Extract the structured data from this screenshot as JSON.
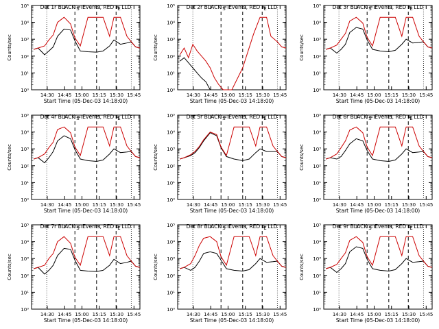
{
  "page": {
    "xlabel": "Start Time (05-Dec-03 14:18:00)",
    "ylabel": "Counts/sec",
    "x_tick_labels": [
      "14:30",
      "14:45",
      "15:00",
      "15:15",
      "15:30",
      "15:45"
    ],
    "y_tick_labels": [
      "10⁰",
      "10¹",
      "10²",
      "10³",
      "10⁴",
      "10⁵"
    ],
    "marker_labels": [
      "S",
      "E"
    ],
    "colors": {
      "events": "#000000",
      "lld": "#cc0000"
    }
  },
  "chart_data": [
    {
      "type": "line",
      "title": "Det 1r BLACK = Events, RED = LLD",
      "variant": "normal",
      "x": [
        2,
        6,
        12,
        16,
        20,
        24,
        30,
        36,
        40,
        45,
        52,
        60,
        66,
        72,
        76,
        82,
        88,
        92,
        96,
        100
      ],
      "series": [
        {
          "values": [
            250,
            300,
            120,
            200,
            350,
            1500,
            4000,
            3500,
            800,
            200,
            180,
            170,
            200,
            400,
            900,
            500,
            600,
            700,
            350,
            300
          ]
        },
        {
          "values": [
            250,
            300,
            400,
            900,
            1800,
            10000,
            20000,
            8000,
            1200,
            400,
            20000,
            20000,
            20000,
            1500,
            20000,
            20000,
            1500,
            700,
            350,
            300
          ]
        }
      ],
      "ylim": [
        1,
        100000
      ],
      "yscale": "log",
      "xlim": [
        0,
        100
      ],
      "x_tick_values": [
        14.5,
        30.5,
        46.5,
        62.5,
        78.5,
        94.5
      ],
      "dotted_x": [
        14,
        92
      ],
      "dashed_x": [
        40,
        60,
        78
      ]
    },
    {
      "type": "line",
      "title": "Det 2r BLACK = Events, RED = LLD",
      "variant": "noisy",
      "x": [
        2,
        6,
        10,
        14,
        18,
        22,
        26,
        30,
        34,
        38,
        42,
        50,
        60,
        70,
        76,
        82,
        86,
        92,
        96,
        100
      ],
      "series": [
        {
          "values": [
            50,
            80,
            40,
            20,
            10,
            5,
            3,
            1,
            1,
            1,
            1,
            1,
            1,
            1,
            1,
            1,
            1,
            1,
            1,
            1
          ]
        },
        {
          "values": [
            120,
            300,
            80,
            500,
            200,
            100,
            50,
            20,
            5,
            2,
            1,
            1,
            20,
            2000,
            20000,
            20000,
            1500,
            700,
            350,
            300
          ]
        }
      ],
      "ylim": [
        1,
        100000
      ],
      "yscale": "log",
      "xlim": [
        0,
        100
      ],
      "x_tick_values": [
        14.5,
        30.5,
        46.5,
        62.5,
        78.5,
        94.5
      ],
      "dotted_x": [
        14,
        92
      ],
      "dashed_x": [
        40,
        60,
        78
      ]
    },
    {
      "type": "line",
      "title": "Det 3r BLACK = Events, RED = LLD",
      "variant": "normal",
      "x": [
        2,
        6,
        12,
        16,
        20,
        24,
        30,
        36,
        40,
        45,
        52,
        60,
        66,
        72,
        76,
        82,
        88,
        92,
        96,
        100
      ],
      "series": [
        {
          "values": [
            250,
            300,
            150,
            250,
            500,
            2500,
            5000,
            4000,
            900,
            250,
            200,
            180,
            220,
            500,
            1000,
            600,
            650,
            700,
            350,
            300
          ]
        },
        {
          "values": [
            250,
            300,
            450,
            1000,
            2200,
            12000,
            20000,
            9000,
            1300,
            400,
            20000,
            20000,
            20000,
            1500,
            20000,
            20000,
            1500,
            700,
            350,
            300
          ]
        }
      ],
      "ylim": [
        1,
        100000
      ],
      "yscale": "log",
      "xlim": [
        0,
        100
      ],
      "x_tick_values": [
        14.5,
        30.5,
        46.5,
        62.5,
        78.5,
        94.5
      ],
      "dotted_x": [
        14,
        92
      ],
      "dashed_x": [
        40,
        60,
        78
      ]
    },
    {
      "type": "line",
      "title": "Det 4r BLACK = Events, RED = LLD",
      "variant": "normal",
      "x": [
        2,
        6,
        12,
        16,
        20,
        24,
        30,
        36,
        40,
        45,
        52,
        60,
        66,
        72,
        76,
        82,
        88,
        92,
        96,
        100
      ],
      "series": [
        {
          "values": [
            250,
            300,
            150,
            300,
            700,
            3000,
            6000,
            4000,
            900,
            250,
            200,
            180,
            220,
            500,
            1000,
            600,
            650,
            700,
            350,
            300
          ]
        },
        {
          "values": [
            250,
            300,
            500,
            1200,
            2500,
            14000,
            20000,
            9000,
            1300,
            400,
            20000,
            20000,
            20000,
            1500,
            20000,
            20000,
            1500,
            700,
            350,
            300
          ]
        }
      ],
      "ylim": [
        1,
        100000
      ],
      "yscale": "log",
      "xlim": [
        0,
        100
      ],
      "x_tick_values": [
        14.5,
        30.5,
        46.5,
        62.5,
        78.5,
        94.5
      ],
      "dotted_x": [
        14,
        92
      ],
      "dashed_x": [
        40,
        60,
        78
      ]
    },
    {
      "type": "line",
      "title": "Det 5r BLACK = Events, RED = LLD",
      "variant": "normal",
      "x": [
        2,
        6,
        12,
        16,
        20,
        24,
        30,
        36,
        40,
        45,
        52,
        60,
        66,
        72,
        76,
        82,
        88,
        92,
        96,
        100
      ],
      "series": [
        {
          "values": [
            250,
            300,
            400,
            600,
            1200,
            3000,
            9000,
            6000,
            1200,
            350,
            250,
            200,
            250,
            600,
            1000,
            700,
            700,
            700,
            350,
            300
          ]
        },
        {
          "values": [
            250,
            300,
            450,
            700,
            1400,
            3500,
            10000,
            7000,
            1300,
            400,
            20000,
            20000,
            20000,
            1500,
            20000,
            20000,
            1500,
            700,
            350,
            300
          ]
        }
      ],
      "ylim": [
        1,
        100000
      ],
      "yscale": "log",
      "xlim": [
        0,
        100
      ],
      "x_tick_values": [
        14.5,
        30.5,
        46.5,
        62.5,
        78.5,
        94.5
      ],
      "dotted_x": [
        14,
        92
      ],
      "dashed_x": [
        40,
        60,
        78
      ]
    },
    {
      "type": "line",
      "title": "Det 6r BLACK = Events, RED = LLD",
      "variant": "normal",
      "x": [
        2,
        6,
        12,
        16,
        20,
        24,
        30,
        36,
        40,
        45,
        52,
        60,
        66,
        72,
        76,
        82,
        88,
        92,
        96,
        100
      ],
      "series": [
        {
          "values": [
            250,
            300,
            250,
            350,
            800,
            2000,
            4000,
            3000,
            800,
            250,
            200,
            180,
            220,
            500,
            1000,
            600,
            650,
            700,
            350,
            300
          ]
        },
        {
          "values": [
            250,
            300,
            500,
            1200,
            3000,
            13000,
            20000,
            9000,
            1300,
            400,
            20000,
            20000,
            20000,
            1500,
            20000,
            20000,
            1500,
            700,
            350,
            300
          ]
        }
      ],
      "ylim": [
        1,
        100000
      ],
      "yscale": "log",
      "xlim": [
        0,
        100
      ],
      "x_tick_values": [
        14.5,
        30.5,
        46.5,
        62.5,
        78.5,
        94.5
      ],
      "dotted_x": [
        14,
        92
      ],
      "dashed_x": [
        40,
        60,
        78
      ]
    },
    {
      "type": "line",
      "title": "Det 7r BLACK = Events, RED = LLD",
      "variant": "normal",
      "x": [
        2,
        6,
        12,
        16,
        20,
        24,
        30,
        36,
        40,
        45,
        52,
        60,
        66,
        72,
        76,
        82,
        88,
        92,
        96,
        100
      ],
      "series": [
        {
          "values": [
            250,
            300,
            120,
            200,
            400,
            1500,
            4000,
            3500,
            800,
            200,
            180,
            170,
            200,
            400,
            900,
            500,
            600,
            700,
            350,
            300
          ]
        },
        {
          "values": [
            250,
            300,
            400,
            1000,
            2000,
            10000,
            20000,
            8000,
            1200,
            400,
            20000,
            20000,
            20000,
            1500,
            20000,
            20000,
            1500,
            700,
            350,
            300
          ]
        }
      ],
      "ylim": [
        1,
        100000
      ],
      "yscale": "log",
      "xlim": [
        0,
        100
      ],
      "x_tick_values": [
        14.5,
        30.5,
        46.5,
        62.5,
        78.5,
        94.5
      ],
      "dotted_x": [
        14,
        92
      ],
      "dashed_x": [
        40,
        60,
        78
      ]
    },
    {
      "type": "line",
      "title": "Det 8r BLACK = Events, RED = LLD",
      "variant": "normal",
      "x": [
        2,
        6,
        12,
        16,
        20,
        24,
        30,
        36,
        40,
        45,
        52,
        60,
        66,
        72,
        76,
        82,
        88,
        92,
        96,
        100
      ],
      "series": [
        {
          "values": [
            250,
            300,
            200,
            300,
            700,
            2000,
            2500,
            2000,
            800,
            250,
            200,
            180,
            220,
            500,
            1000,
            600,
            650,
            700,
            350,
            300
          ]
        },
        {
          "values": [
            250,
            300,
            500,
            1500,
            6000,
            16000,
            20000,
            10000,
            1300,
            400,
            20000,
            20000,
            20000,
            1500,
            20000,
            20000,
            1500,
            700,
            350,
            300
          ]
        }
      ],
      "ylim": [
        1,
        100000
      ],
      "yscale": "log",
      "xlim": [
        0,
        100
      ],
      "x_tick_values": [
        14.5,
        30.5,
        46.5,
        62.5,
        78.5,
        94.5
      ],
      "dotted_x": [
        14,
        92
      ],
      "dashed_x": [
        40,
        60,
        78
      ]
    },
    {
      "type": "line",
      "title": "Det 9r BLACK = Events, RED = LLD",
      "variant": "normal",
      "x": [
        2,
        6,
        12,
        16,
        20,
        24,
        30,
        36,
        40,
        45,
        52,
        60,
        66,
        72,
        76,
        82,
        88,
        92,
        96,
        100
      ],
      "series": [
        {
          "values": [
            250,
            300,
            150,
            250,
            500,
            2500,
            5000,
            4000,
            900,
            250,
            200,
            180,
            220,
            500,
            1000,
            600,
            650,
            700,
            350,
            300
          ]
        },
        {
          "values": [
            250,
            300,
            450,
            1000,
            2200,
            12000,
            20000,
            9000,
            1300,
            400,
            20000,
            20000,
            20000,
            1500,
            20000,
            20000,
            1500,
            700,
            350,
            300
          ]
        }
      ],
      "ylim": [
        1,
        100000
      ],
      "yscale": "log",
      "xlim": [
        0,
        100
      ],
      "x_tick_values": [
        14.5,
        30.5,
        46.5,
        62.5,
        78.5,
        94.5
      ],
      "dotted_x": [
        14,
        92
      ],
      "dashed_x": [
        40,
        60,
        78
      ]
    }
  ]
}
